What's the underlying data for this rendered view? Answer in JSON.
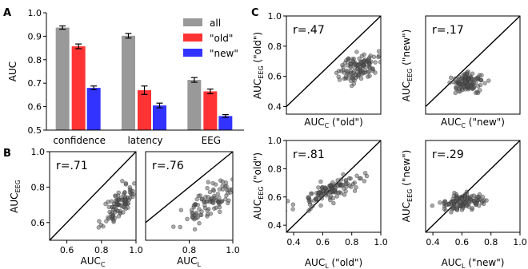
{
  "panel_labels": {
    "A": "A",
    "B": "B",
    "C": "C"
  },
  "colors": {
    "all": "#999999",
    "old": "#ff3333",
    "new": "#3333ff",
    "point": "#555555"
  },
  "chart_data": [
    {
      "id": "A",
      "type": "bar",
      "categories": [
        "confidence",
        "latency",
        "EEG"
      ],
      "series": [
        {
          "name": "all",
          "values": [
            0.937,
            0.902,
            0.714
          ],
          "errors": [
            0.007,
            0.01,
            0.01
          ]
        },
        {
          "name": "\"old\"",
          "values": [
            0.857,
            0.67,
            0.665
          ],
          "errors": [
            0.01,
            0.018,
            0.01
          ]
        },
        {
          "name": "\"new\"",
          "values": [
            0.68,
            0.605,
            0.56
          ],
          "errors": [
            0.008,
            0.01,
            0.006
          ]
        }
      ],
      "ylabel": "AUC",
      "ylim": [
        0.5,
        1.0
      ],
      "yticks": [
        "0.5",
        "0.6",
        "0.7",
        "0.8",
        "0.9",
        "1.0"
      ],
      "legend": "top-right"
    },
    {
      "id": "B1",
      "type": "scatter",
      "r_label": "r=.71",
      "xlabel": "AUC",
      "xlabel_sub": "C",
      "ylabel": "AUC",
      "ylabel_sub": "EEG",
      "xlim": [
        0.5,
        1.0
      ],
      "ylim": [
        0.5,
        1.0
      ],
      "xticks": [
        "0.6",
        "0.8",
        "1.0"
      ],
      "yticks": [
        "0.6",
        "0.8",
        "1.0"
      ],
      "cluster": {
        "x_mean": 0.91,
        "x_sd": 0.05,
        "y_mean": 0.71,
        "y_sd": 0.06,
        "r": 0.71,
        "n": 100,
        "seed": 11
      }
    },
    {
      "id": "B2",
      "type": "scatter",
      "r_label": "r=.76",
      "xlabel": "AUC",
      "xlabel_sub": "L",
      "ylabel": "",
      "ylabel_sub": "",
      "xlim": [
        0.6,
        1.0
      ],
      "ylim": [
        0.5,
        1.0
      ],
      "xticks": [
        "0.8",
        "1.0"
      ],
      "yticks": [],
      "cluster": {
        "x_mean": 0.89,
        "x_sd": 0.06,
        "y_mean": 0.71,
        "y_sd": 0.06,
        "r": 0.76,
        "n": 100,
        "seed": 23
      }
    },
    {
      "id": "C1",
      "type": "scatter",
      "r_label": "r=.47",
      "xlabel": "AUC",
      "xlabel_sub": "C",
      "xlabel_suffix": " (\"old\")",
      "ylabel": "AUC",
      "ylabel_sub": "EEG",
      "ylabel_suffix": " (\"old\")",
      "xlim": [
        0.4,
        1.0
      ],
      "ylim": [
        0.35,
        1.0
      ],
      "xticks": [],
      "yticks": [
        "0.4",
        "0.6",
        "0.8",
        "1.0"
      ],
      "cluster": {
        "x_mean": 0.86,
        "x_sd": 0.06,
        "y_mean": 0.66,
        "y_sd": 0.05,
        "r": 0.47,
        "n": 120,
        "seed": 37
      }
    },
    {
      "id": "C2",
      "type": "scatter",
      "r_label": "r=.17",
      "xlabel": "AUC",
      "xlabel_sub": "C",
      "xlabel_suffix": " (\"new\")",
      "ylabel": "AUC",
      "ylabel_sub": "EEG",
      "ylabel_suffix": " (\"new\")",
      "xlim": [
        0.4,
        1.0
      ],
      "ylim": [
        0.35,
        1.0
      ],
      "xticks": [],
      "yticks": [],
      "cluster": {
        "x_mean": 0.67,
        "x_sd": 0.05,
        "y_mean": 0.56,
        "y_sd": 0.03,
        "r": 0.17,
        "n": 120,
        "seed": 41
      }
    },
    {
      "id": "C3",
      "type": "scatter",
      "r_label": "r=.81",
      "xlabel": "AUC",
      "xlabel_sub": "L",
      "xlabel_suffix": " (\"old\")",
      "ylabel": "AUC",
      "ylabel_sub": "EEG",
      "ylabel_suffix": " (\"old\")",
      "xlim": [
        0.35,
        1.0
      ],
      "ylim": [
        0.35,
        1.0
      ],
      "xticks": [
        "0.4",
        "0.6",
        "0.8",
        "1.0"
      ],
      "yticks": [
        "0.4",
        "0.6",
        "0.8",
        "1.0"
      ],
      "cluster": {
        "x_mean": 0.66,
        "x_sd": 0.12,
        "y_mean": 0.65,
        "y_sd": 0.06,
        "r": 0.81,
        "n": 120,
        "seed": 53
      }
    },
    {
      "id": "C4",
      "type": "scatter",
      "r_label": "r=.29",
      "xlabel": "AUC",
      "xlabel_sub": "L",
      "xlabel_suffix": " (\"new\")",
      "ylabel": "AUC",
      "ylabel_sub": "EEG",
      "ylabel_suffix": " (\"new\")",
      "xlim": [
        0.35,
        1.0
      ],
      "ylim": [
        0.35,
        1.0
      ],
      "xticks": [
        "0.4",
        "0.6",
        "0.8",
        "1.0"
      ],
      "yticks": [],
      "cluster": {
        "x_mean": 0.6,
        "x_sd": 0.07,
        "y_mean": 0.56,
        "y_sd": 0.03,
        "r": 0.29,
        "n": 120,
        "seed": 67
      }
    }
  ]
}
